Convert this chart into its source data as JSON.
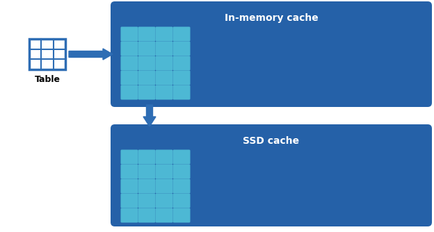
{
  "bg_color": "#ffffff",
  "dark_blue": "#1a4f8a",
  "medium_blue": "#2561a8",
  "arrow_blue": "#2e6db4",
  "cell_fill": "#4db8d4",
  "cell_edge": "#2e9fc0",
  "box1_label": "In-memory cache",
  "box2_label": "SSD cache",
  "table_label": "Table",
  "table_icon_color": "#2e6db4",
  "grid_rows": 5,
  "grid_cols": 4,
  "fig_w": 6.24,
  "fig_h": 3.34,
  "dpi": 100
}
